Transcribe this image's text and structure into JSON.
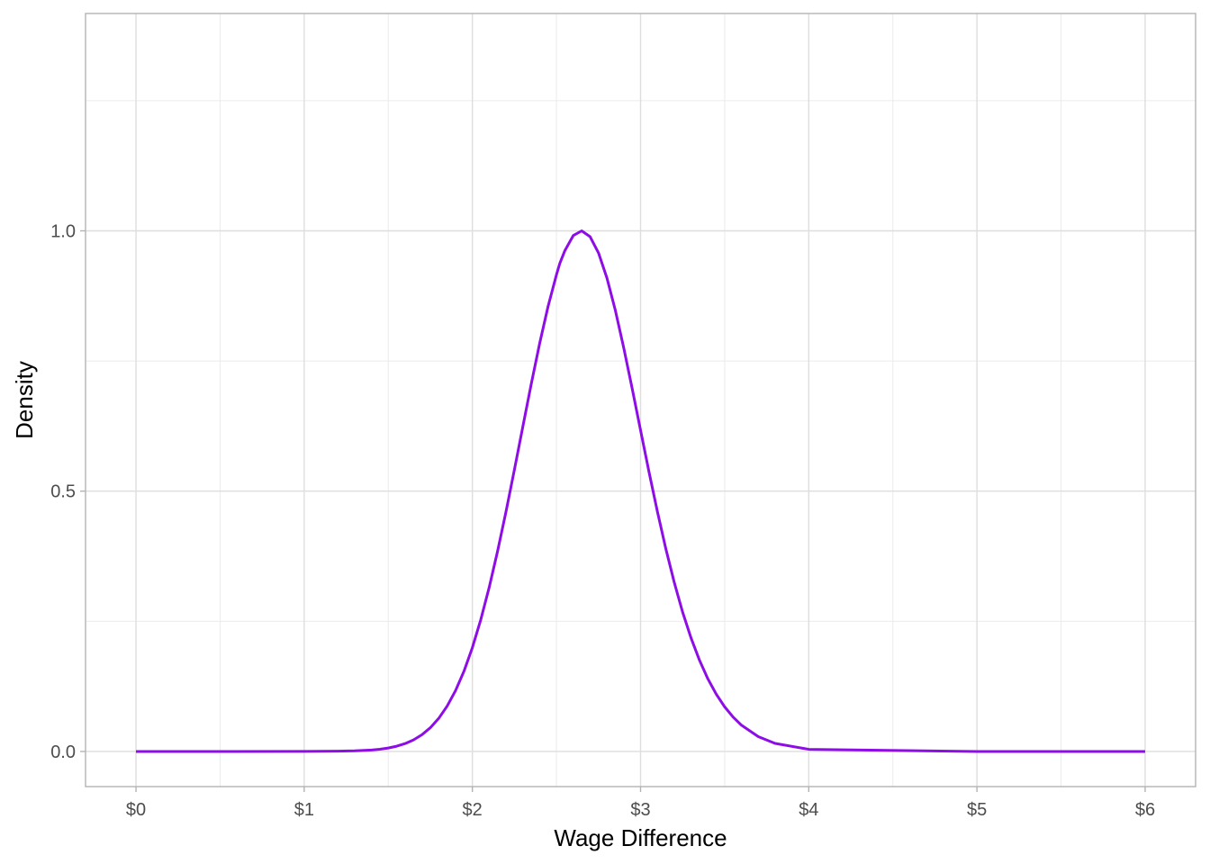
{
  "chart_data": {
    "type": "line",
    "xlabel": "Wage Difference",
    "ylabel": "Density",
    "xlim": [
      -0.3,
      6.3
    ],
    "ylim": [
      -0.0675,
      1.4175
    ],
    "x_major_ticks": [
      0,
      1,
      2,
      3,
      4,
      5,
      6
    ],
    "x_tick_labels": [
      "$0",
      "$1",
      "$2",
      "$3",
      "$4",
      "$5",
      "$6"
    ],
    "x_minor_ticks": [
      0.5,
      1.5,
      2.5,
      3.5,
      4.5,
      5.5
    ],
    "y_major_ticks": [
      0,
      0.5,
      1.0
    ],
    "y_tick_labels": [
      "0.0",
      "0.5",
      "1.0"
    ],
    "y_minor_ticks": [
      0.25,
      0.75,
      1.25
    ],
    "grid": true,
    "legend": "none",
    "series": [
      {
        "color": "#8E0DE6",
        "x": [
          0,
          0.5,
          1.0,
          1.2,
          1.3,
          1.4,
          1.45,
          1.5,
          1.55,
          1.6,
          1.65,
          1.7,
          1.75,
          1.8,
          1.85,
          1.9,
          1.95,
          2.0,
          2.05,
          2.1,
          2.15,
          2.2,
          2.25,
          2.3,
          2.35,
          2.4,
          2.45,
          2.5,
          2.52,
          2.55,
          2.6,
          2.65,
          2.7,
          2.75,
          2.8,
          2.85,
          2.9,
          2.95,
          3.0,
          3.05,
          3.1,
          3.15,
          3.2,
          3.25,
          3.3,
          3.35,
          3.4,
          3.45,
          3.5,
          3.55,
          3.6,
          3.7,
          3.8,
          4.0,
          5.0,
          6.0
        ],
        "y": [
          0,
          0,
          0.0001,
          0.0005,
          0.0012,
          0.0027,
          0.0042,
          0.0066,
          0.0101,
          0.0151,
          0.0222,
          0.0321,
          0.0456,
          0.0636,
          0.0871,
          0.1169,
          0.1541,
          0.1994,
          0.2531,
          0.3151,
          0.3848,
          0.4608,
          0.5413,
          0.6239,
          0.7058,
          0.7838,
          0.8548,
          0.9158,
          0.9377,
          0.962,
          0.991,
          1.0,
          0.9887,
          0.9576,
          0.9094,
          0.8474,
          0.7752,
          0.6973,
          0.617,
          0.5373,
          0.4609,
          0.3897,
          0.3251,
          0.2677,
          0.2181,
          0.1755,
          0.1396,
          0.11,
          0.0857,
          0.0661,
          0.0504,
          0.0285,
          0.0155,
          0.0041,
          0.0,
          0.0
        ]
      }
    ]
  }
}
